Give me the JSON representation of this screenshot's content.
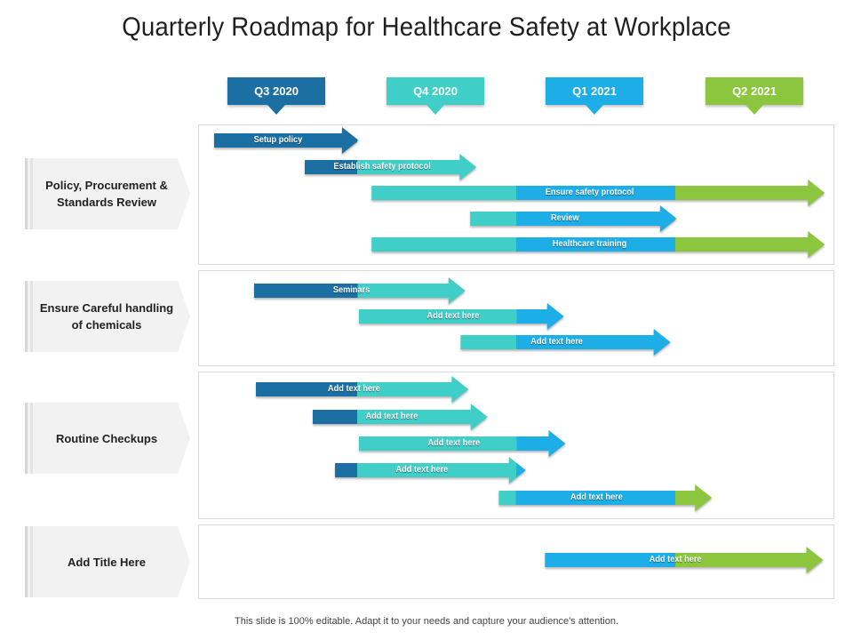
{
  "title": "Quarterly Roadmap for Healthcare Safety at Workplace",
  "quarters": [
    {
      "label": "Q3 2020",
      "color": "#1b6fa3"
    },
    {
      "label": "Q4 2020",
      "color": "#40cfc8"
    },
    {
      "label": "Q1 2021",
      "color": "#1daee8"
    },
    {
      "label": "Q2 2021",
      "color": "#8cc63f"
    }
  ],
  "colors": {
    "dark_blue": "#1b6fa3",
    "teal": "#40cfc8",
    "sky": "#1daee8",
    "green": "#8cc63f"
  },
  "categories": [
    {
      "title": "Policy, Procurement & Standards Review",
      "tasks": [
        {
          "label": "Setup policy",
          "start": 0.0,
          "end": 0.91
        },
        {
          "label": "Establish safety protocol",
          "start": 0.57,
          "end": 1.65
        },
        {
          "label": "Ensure safety protocol",
          "start": 0.99,
          "end": 3.84
        },
        {
          "label": "Review",
          "start": 1.61,
          "end": 2.91
        },
        {
          "label": "Healthcare training",
          "start": 0.99,
          "end": 3.84
        }
      ]
    },
    {
      "title": "Ensure Careful handling of chemicals",
      "tasks": [
        {
          "label": "Seminars",
          "start": 0.25,
          "end": 1.58
        },
        {
          "label": "Add text here",
          "start": 0.91,
          "end": 2.2
        },
        {
          "label": "Add text here",
          "start": 1.55,
          "end": 2.87
        }
      ]
    },
    {
      "title": "Routine Checkups",
      "tasks": [
        {
          "label": "Add text here",
          "start": 0.26,
          "end": 1.6
        },
        {
          "label": "Add text here",
          "start": 0.62,
          "end": 1.72
        },
        {
          "label": "Add text here",
          "start": 0.91,
          "end": 2.21
        },
        {
          "label": "Add text here",
          "start": 0.76,
          "end": 1.96
        },
        {
          "label": "Add text here",
          "start": 1.79,
          "end": 3.13
        }
      ]
    },
    {
      "title": "Add Title Here",
      "tasks": [
        {
          "label": "Add text here",
          "start": 2.08,
          "end": 3.83
        }
      ]
    }
  ],
  "footer": "This slide is 100% editable. Adapt it to your needs and capture your audience's attention."
}
